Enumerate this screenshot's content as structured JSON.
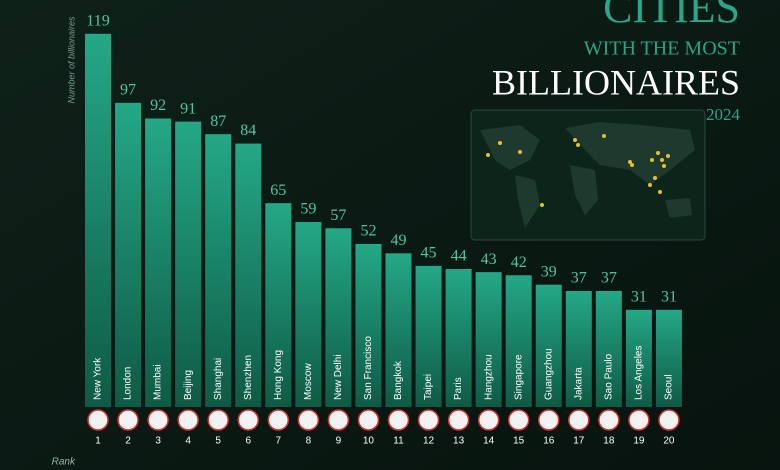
{
  "chart_data": {
    "type": "bar",
    "title_lines": [
      "CITIES",
      "WITH THE MOST",
      "BILLIONAIRES"
    ],
    "subtitle": "2024",
    "y_label": "Number of billionaires",
    "rank_label": "Rank",
    "categories": [
      "New York",
      "London",
      "Mumbai",
      "Beijing",
      "Shanghai",
      "Shenzhen",
      "Hong Kong",
      "Moscow",
      "New Delhi",
      "San Francisco",
      "Bangkok",
      "Taipei",
      "Paris",
      "Hangzhou",
      "Singapore",
      "Guangzhou",
      "Jakarta",
      "Sao Paulo",
      "Los Angeles",
      "Seoul"
    ],
    "ranks": [
      1,
      2,
      3,
      4,
      5,
      6,
      7,
      8,
      9,
      10,
      11,
      12,
      13,
      14,
      15,
      16,
      17,
      18,
      19,
      20
    ],
    "values": [
      119,
      97,
      92,
      91,
      87,
      84,
      65,
      59,
      57,
      52,
      49,
      45,
      44,
      43,
      42,
      39,
      37,
      37,
      31,
      31
    ],
    "color": "#1f9c7c",
    "ylim": [
      0,
      125
    ]
  }
}
